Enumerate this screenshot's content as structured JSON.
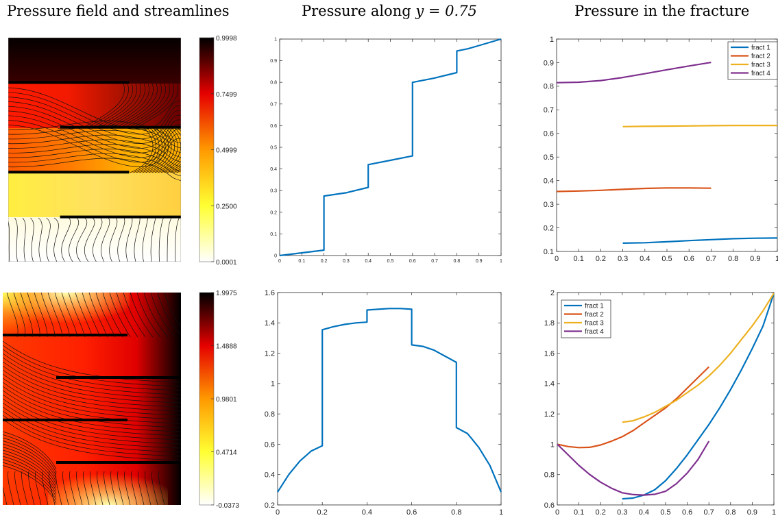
{
  "column_titles": {
    "col1": "Pressure field and streamlines",
    "col2_prefix": "Pressure along ",
    "col2_math": "y = 0.75",
    "col3": "Pressure in the fracture"
  },
  "chart_data": [
    {
      "id": "field_top",
      "type": "heatmap",
      "title": "Pressure field and streamlines",
      "colormap": "hot (reversed: white = low, black = high)",
      "colorbar_ticks": [
        "0.9998",
        "0.7499",
        "0.4999",
        "0.2500",
        "0.0001"
      ],
      "colorbar_range": [
        0.0001,
        0.9998
      ],
      "fractures": [
        {
          "x": [
            0.0,
            0.7
          ],
          "y": 0.75
        },
        {
          "x": [
            0.3,
            1.0
          ],
          "y": 0.5
        },
        {
          "x": [
            0.0,
            0.7
          ],
          "y": 0.25
        },
        {
          "x": [
            0.3,
            1.0
          ],
          "y": 0.0
        }
      ],
      "grid": false
    },
    {
      "id": "line_top",
      "type": "line",
      "title": "Pressure along y = 0.75",
      "xlim": [
        0,
        1
      ],
      "ylim": [
        0,
        1
      ],
      "xticks": [
        "0",
        "0.1",
        "0.2",
        "0.3",
        "0.4",
        "0.5",
        "0.6",
        "0.7",
        "0.8",
        "0.9",
        "1"
      ],
      "yticks": [
        "0",
        "0.1",
        "0.2",
        "0.3",
        "0.4",
        "0.5",
        "0.6",
        "0.7",
        "0.8",
        "0.9",
        "1"
      ],
      "color": "#0072BD",
      "series": [
        {
          "x": [
            0,
            0.2,
            0.2,
            0.3,
            0.4,
            0.4,
            0.5,
            0.6,
            0.6,
            0.7,
            0.8,
            0.8,
            0.85,
            0.9,
            1.0
          ],
          "y": [
            0,
            0.025,
            0.275,
            0.29,
            0.315,
            0.42,
            0.44,
            0.46,
            0.8,
            0.82,
            0.845,
            0.945,
            0.955,
            0.97,
            1.0
          ]
        }
      ],
      "grid": false
    },
    {
      "id": "fract_top",
      "type": "line",
      "title": "Pressure in the fracture",
      "xlim": [
        0,
        1
      ],
      "ylim": [
        0.1,
        1
      ],
      "xticks": [
        "0",
        "0.1",
        "0.2",
        "0.3",
        "0.4",
        "0.5",
        "0.6",
        "0.7",
        "0.8",
        "0.9",
        "1"
      ],
      "yticks": [
        "0.1",
        "0.2",
        "0.3",
        "0.4",
        "0.5",
        "0.6",
        "0.7",
        "0.8",
        "0.9",
        "1"
      ],
      "legend_position": "top-right",
      "series": [
        {
          "name": "fract 1",
          "color": "#0072BD",
          "x": [
            0.3,
            0.4,
            0.5,
            0.6,
            0.7,
            0.8,
            0.9,
            1.0
          ],
          "y": [
            0.135,
            0.137,
            0.141,
            0.146,
            0.15,
            0.154,
            0.156,
            0.157
          ]
        },
        {
          "name": "fract 2",
          "color": "#D95319",
          "x": [
            0.0,
            0.1,
            0.2,
            0.3,
            0.4,
            0.5,
            0.6,
            0.7
          ],
          "y": [
            0.354,
            0.356,
            0.359,
            0.363,
            0.367,
            0.369,
            0.369,
            0.368
          ]
        },
        {
          "name": "fract 3",
          "color": "#EDB120",
          "x": [
            0.3,
            0.4,
            0.5,
            0.6,
            0.7,
            0.8,
            0.9,
            1.0
          ],
          "y": [
            0.629,
            0.63,
            0.631,
            0.632,
            0.633,
            0.634,
            0.634,
            0.634
          ]
        },
        {
          "name": "fract 4",
          "color": "#7E2F8E",
          "x": [
            0.0,
            0.1,
            0.2,
            0.3,
            0.4,
            0.5,
            0.6,
            0.7
          ],
          "y": [
            0.815,
            0.817,
            0.824,
            0.837,
            0.853,
            0.87,
            0.886,
            0.901
          ]
        }
      ],
      "grid": false
    },
    {
      "id": "field_bottom",
      "type": "heatmap",
      "title": "",
      "colormap": "hot (reversed: white = low, black = high)",
      "colorbar_ticks": [
        "1.9975",
        "1.4888",
        "0.9801",
        "0.4714",
        "-0.0373"
      ],
      "colorbar_range": [
        -0.0373,
        1.9975
      ],
      "fractures": [
        {
          "x": [
            0.0,
            0.7
          ],
          "y": 0.75
        },
        {
          "x": [
            0.3,
            1.0
          ],
          "y": 0.5
        },
        {
          "x": [
            0.0,
            0.7
          ],
          "y": 0.25
        },
        {
          "x": [
            0.3,
            1.0
          ],
          "y": 0.0
        }
      ],
      "grid": false
    },
    {
      "id": "line_bottom",
      "type": "line",
      "title": "",
      "xlim": [
        0,
        1
      ],
      "ylim": [
        0.2,
        1.6
      ],
      "xticks": [
        "0",
        "0.2",
        "0.4",
        "0.6",
        "0.8",
        "1"
      ],
      "yticks": [
        "0.2",
        "0.4",
        "0.6",
        "0.8",
        "1",
        "1.2",
        "1.4",
        "1.6"
      ],
      "color": "#0072BD",
      "series": [
        {
          "x": [
            0,
            0.05,
            0.1,
            0.15,
            0.2,
            0.2,
            0.25,
            0.3,
            0.35,
            0.4,
            0.4,
            0.45,
            0.5,
            0.55,
            0.6,
            0.6,
            0.65,
            0.7,
            0.75,
            0.8,
            0.8,
            0.85,
            0.9,
            0.95,
            1.0
          ],
          "y": [
            0.285,
            0.4,
            0.49,
            0.555,
            0.59,
            1.355,
            1.375,
            1.39,
            1.4,
            1.405,
            1.485,
            1.49,
            1.495,
            1.495,
            1.49,
            1.255,
            1.245,
            1.22,
            1.18,
            1.14,
            0.71,
            0.67,
            0.58,
            0.46,
            0.285
          ]
        }
      ],
      "grid": false
    },
    {
      "id": "fract_bottom",
      "type": "line",
      "title": "",
      "xlim": [
        0,
        1
      ],
      "ylim": [
        0.6,
        2
      ],
      "xticks": [
        "0",
        "0.1",
        "0.2",
        "0.3",
        "0.4",
        "0.5",
        "0.6",
        "0.7",
        "0.8",
        "0.9",
        "1"
      ],
      "yticks": [
        "0.6",
        "0.8",
        "1",
        "1.2",
        "1.4",
        "1.6",
        "1.8",
        "2"
      ],
      "legend_position": "top-left",
      "series": [
        {
          "name": "fract 1",
          "color": "#0072BD",
          "x": [
            0.3,
            0.35,
            0.4,
            0.45,
            0.5,
            0.55,
            0.6,
            0.65,
            0.7,
            0.75,
            0.8,
            0.85,
            0.9,
            0.95,
            1.0
          ],
          "y": [
            0.64,
            0.645,
            0.665,
            0.7,
            0.76,
            0.84,
            0.93,
            1.03,
            1.13,
            1.24,
            1.36,
            1.49,
            1.63,
            1.78,
            1.995
          ]
        },
        {
          "name": "fract 2",
          "color": "#D95319",
          "x": [
            0.0,
            0.05,
            0.1,
            0.15,
            0.2,
            0.25,
            0.3,
            0.35,
            0.4,
            0.45,
            0.5,
            0.55,
            0.6,
            0.65,
            0.7
          ],
          "y": [
            1.0,
            0.985,
            0.978,
            0.98,
            0.995,
            1.02,
            1.05,
            1.09,
            1.14,
            1.19,
            1.24,
            1.3,
            1.37,
            1.44,
            1.51
          ]
        },
        {
          "name": "fract 3",
          "color": "#EDB120",
          "x": [
            0.3,
            0.35,
            0.4,
            0.45,
            0.5,
            0.55,
            0.6,
            0.65,
            0.7,
            0.75,
            0.8,
            0.85,
            0.9,
            0.95,
            1.0
          ],
          "y": [
            1.145,
            1.155,
            1.18,
            1.21,
            1.25,
            1.29,
            1.34,
            1.39,
            1.45,
            1.52,
            1.6,
            1.69,
            1.78,
            1.88,
            1.995
          ]
        },
        {
          "name": "fract 4",
          "color": "#7E2F8E",
          "x": [
            0.0,
            0.05,
            0.1,
            0.15,
            0.2,
            0.25,
            0.3,
            0.35,
            0.4,
            0.45,
            0.5,
            0.55,
            0.6,
            0.65,
            0.7
          ],
          "y": [
            1.0,
            0.93,
            0.86,
            0.8,
            0.75,
            0.71,
            0.68,
            0.668,
            0.665,
            0.67,
            0.69,
            0.74,
            0.81,
            0.9,
            1.02
          ]
        }
      ],
      "grid": false
    }
  ]
}
